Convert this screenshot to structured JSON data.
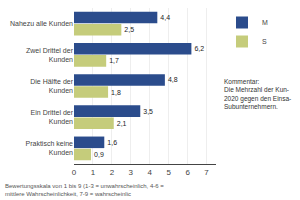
{
  "chart_data": {
    "type": "bar",
    "orientation": "horizontal",
    "categories": [
      "Praktisch keine\nKunden",
      "Ein Drittel der\nKunden",
      "Die Hälfte der\nKunden",
      "Zwei Drittel der\nKunden",
      "Nahezu alle Kunden"
    ],
    "series": [
      {
        "name": "M",
        "color": "#2B4C8C",
        "values": [
          1.6,
          3.5,
          4.8,
          6.2,
          4.4
        ],
        "value_labels": [
          "1,6",
          "3,5",
          "4,8",
          "6,2",
          "4,4"
        ]
      },
      {
        "name": "S",
        "color": "#C5CC7B",
        "values": [
          0.9,
          2.1,
          1.8,
          1.7,
          2.5
        ],
        "value_labels": [
          "0,9",
          "2,1",
          "1,8",
          "1,7",
          "2,5"
        ]
      }
    ],
    "xlim": [
      0,
      7.5
    ],
    "xticks": [
      0,
      1,
      2,
      3,
      4,
      5,
      6,
      7
    ],
    "grid": true,
    "legend": "upper right",
    "data_labels": true,
    "annotations": [
      "Kommentar:\nDie Mehrzahl der Kun-\n2020 gegen den Einsa-\nSubunternehmern.",
      "Bewertungsskala von 1 bis 9 (1-3 = unwahrscheinlich, 4-6 = mittlere Wahrscheinlichkeit, 7-9 = wahrscheinlic"
    ]
  }
}
